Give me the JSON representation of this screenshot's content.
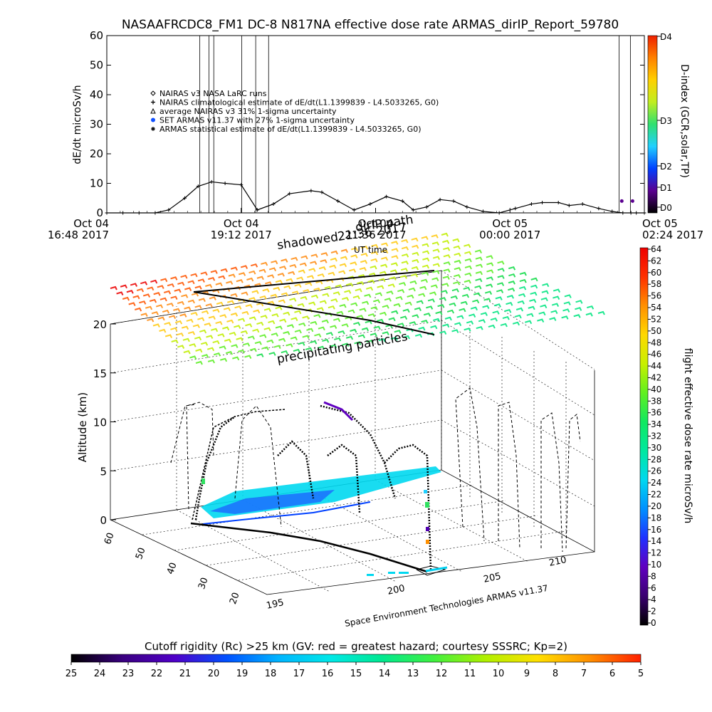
{
  "chart_data": [
    {
      "type": "line",
      "title": "NASAAFRCDC8_FM1 DC-8   N817NA effective dose rate ARMAS_dirIP_Report_59780",
      "ylabel": "dE/dt microSv/h",
      "ylim": [
        0,
        60
      ],
      "y_ticks": [
        "0",
        "10",
        "20",
        "30",
        "40",
        "50",
        "60"
      ],
      "x_ticks": [
        {
          "line1": "Oct 04",
          "line2": "16:48 2017"
        },
        {
          "line1": "Oct 04",
          "line2": "19:12 2017"
        },
        {
          "line1": "Oct 04",
          "line2": "21:36 2017"
        },
        {
          "line1": "Oct 05",
          "line2": "00:00 2017"
        },
        {
          "line1": "Oct 05",
          "line2": "02:24 2017"
        }
      ],
      "legend": [
        {
          "symbol": "diamond",
          "label": "NAIRAS v3 NASA LaRC runs"
        },
        {
          "symbol": "plus",
          "label": "NAIRAS climatological estimate of dE/dt(L1.1399839 - L4.5033265, G0)"
        },
        {
          "symbol": "triangle",
          "label": "average NAIRAS v3 31% 1-sigma uncertainty"
        },
        {
          "symbol": "blue-dot",
          "label": "SET ARMAS v11.37 with 27% 1-sigma uncertainty"
        },
        {
          "symbol": "asterisk",
          "label": "ARMAS statistical estimate of dE/dt(L1.1399839 - L4.5033265, G0)"
        }
      ],
      "series": [
        {
          "x_hours": [
            0.0,
            0.3,
            0.6,
            0.9,
            1.15,
            1.45,
            1.7,
            1.95,
            2.2,
            2.5,
            2.8,
            3.1,
            3.4,
            3.8,
            4.0,
            4.3,
            4.6,
            4.9,
            5.2,
            5.5,
            5.7,
            5.95,
            6.2,
            6.45,
            6.7,
            7.0,
            7.3,
            7.6,
            7.9,
            8.1,
            8.4,
            8.6,
            8.85,
            9.15,
            9.4,
            9.6,
            9.75,
            9.85,
            10.0
          ],
          "values": [
            0.0,
            0.0,
            0.0,
            0.0,
            1.0,
            5.0,
            9.0,
            10.5,
            10.0,
            9.5,
            1.0,
            3.0,
            6.5,
            7.5,
            7.0,
            4.0,
            1.0,
            3.0,
            5.5,
            4.0,
            1.0,
            2.0,
            4.5,
            4.0,
            2.0,
            0.5,
            0.0,
            1.5,
            3.0,
            3.5,
            3.5,
            2.5,
            3.0,
            1.5,
            0.5,
            0.0,
            0.0,
            0.0,
            0.0
          ]
        }
      ],
      "vertical_lines_hours": [
        1.73,
        1.9,
        1.99,
        2.51,
        2.77,
        3.01,
        9.53,
        9.74
      ],
      "right_axis": {
        "label": "D-index (GCR,solar,TP)",
        "ticks": [
          "D0",
          "D1",
          "D2",
          "D3",
          "D4"
        ],
        "colors": [
          "#000000",
          "#5a0090",
          "#0040ff",
          "#20d0ff",
          "#30e070",
          "#c0ee20",
          "#ffd000",
          "#ff8000",
          "#ee2000"
        ]
      }
    },
    {
      "type": "scatter",
      "annotations": {
        "top_left": "shadowed",
        "top_middle": "21:36 2017",
        "top_right": "dirIP path",
        "ut_time": "UT time",
        "plane": "precipitating particles",
        "credit": "Space Environment Technologies ARMAS v11.37"
      },
      "zlabel": "Altitude (km)",
      "z_ticks": [
        "0",
        "5",
        "10",
        "15",
        "20"
      ],
      "lat_ticks": [
        "60",
        "50",
        "40",
        "30",
        "20"
      ],
      "lon_ticks": [
        "195",
        "200",
        "205",
        "210"
      ],
      "colorbar": {
        "label": "flight effective dose rate microSv/h",
        "ticks": [
          "0",
          "2",
          "4",
          "6",
          "8",
          "10",
          "12",
          "14",
          "16",
          "18",
          "20",
          "22",
          "24",
          "26",
          "28",
          "30",
          "32",
          "34",
          "36",
          "38",
          "40",
          "42",
          "44",
          "46",
          "48",
          "50",
          "52",
          "54",
          "56",
          "58",
          "60",
          "62",
          "64"
        ],
        "colors": [
          "#000000",
          "#3a0070",
          "#6000c0",
          "#2030ff",
          "#0090ff",
          "#00d8f0",
          "#00e8a0",
          "#10e860",
          "#60f020",
          "#c8f000",
          "#ffd800",
          "#ff9000",
          "#ff3000",
          "#ee0000"
        ]
      },
      "cutoff_rigidity": {
        "title": "Cutoff rigidity (Rc) >25 km (GV: red = greatest hazard; courtesy SSSRC; Kp=2)",
        "ticks": [
          "25",
          "24",
          "23",
          "22",
          "21",
          "20",
          "19",
          "18",
          "17",
          "16",
          "15",
          "14",
          "13",
          "12",
          "11",
          "10",
          "9",
          "8",
          "7",
          "6",
          "5"
        ],
        "colors": [
          "#000000",
          "#3a0080",
          "#5000c8",
          "#0050ff",
          "#00b4ff",
          "#00e8e8",
          "#00e890",
          "#40f040",
          "#b0f000",
          "#ffe000",
          "#ff9000",
          "#ff2000"
        ]
      }
    }
  ]
}
